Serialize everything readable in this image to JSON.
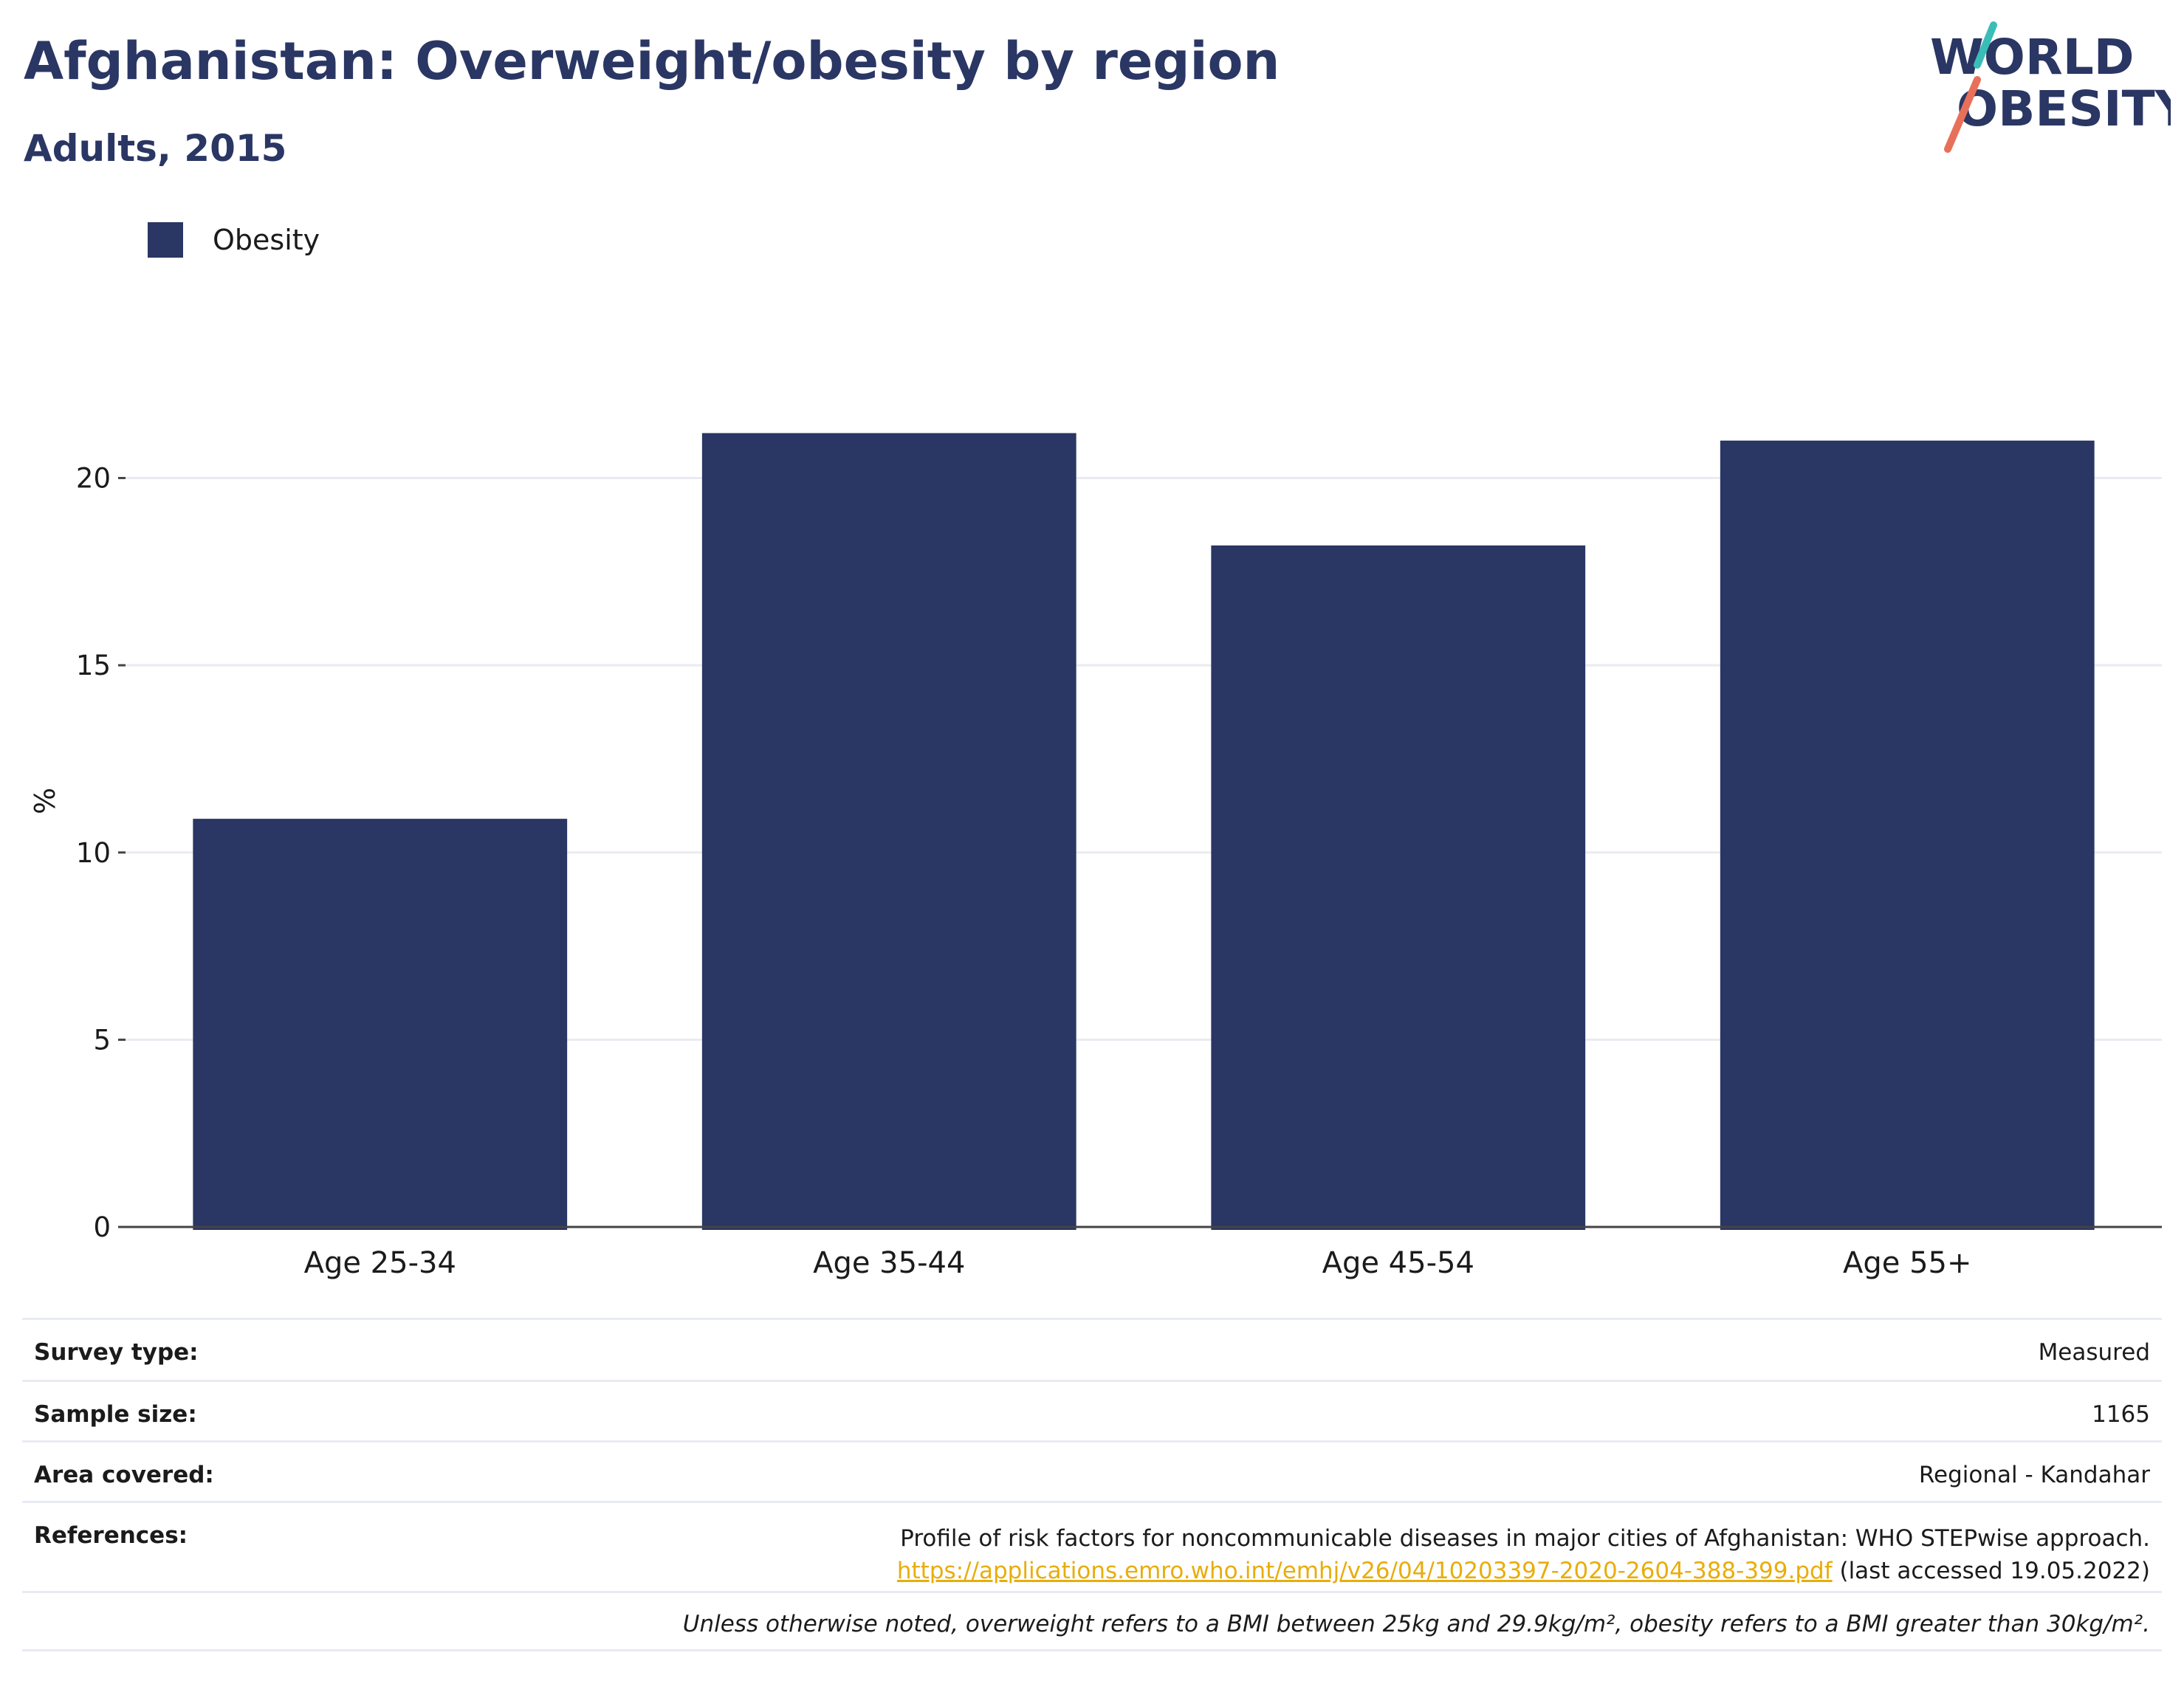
{
  "header": {
    "title": "Afghanistan: Overweight/obesity by region",
    "subtitle": "Adults, 2015"
  },
  "logo": {
    "line1": "WORLD",
    "line2": "OBESITY",
    "colors": {
      "text": "#2a3663",
      "slash_teal": "#3bbdb7",
      "slash_coral": "#e8705a"
    }
  },
  "legend": {
    "items": [
      {
        "label": "Obesity",
        "color": "#2a3663"
      }
    ]
  },
  "chart_data": {
    "type": "bar",
    "title": "Afghanistan: Overweight/obesity by region",
    "subtitle": "Adults, 2015",
    "xlabel": "",
    "ylabel": "%",
    "categories": [
      "Age 25-34",
      "Age 35-44",
      "Age 45-54",
      "Age 55+"
    ],
    "series": [
      {
        "name": "Obesity",
        "color": "#2a3663",
        "values": [
          10.9,
          21.2,
          18.2,
          21.0
        ]
      }
    ],
    "ylim": [
      0,
      23.5
    ],
    "yticks": [
      0,
      5,
      10,
      15,
      20
    ],
    "grid": true,
    "legend_position": "top-left"
  },
  "info": {
    "survey_type": {
      "label": "Survey type:",
      "value": "Measured"
    },
    "sample_size": {
      "label": "Sample size:",
      "value": "1165"
    },
    "area_covered": {
      "label": "Area covered:",
      "value": "Regional - Kandahar"
    },
    "references": {
      "label": "References:",
      "text": "Profile of risk factors for noncommunicable diseases in major cities of Afghanistan: WHO STEPwise approach.",
      "link": "https://applications.emro.who.int/emhj/v26/04/10203397-2020-2604-388-399.pdf",
      "suffix": " (last accessed 19.05.2022)"
    },
    "note": "Unless otherwise noted, overweight refers to a BMI between 25kg and 29.9kg/m², obesity refers to a BMI greater than 30kg/m²."
  }
}
